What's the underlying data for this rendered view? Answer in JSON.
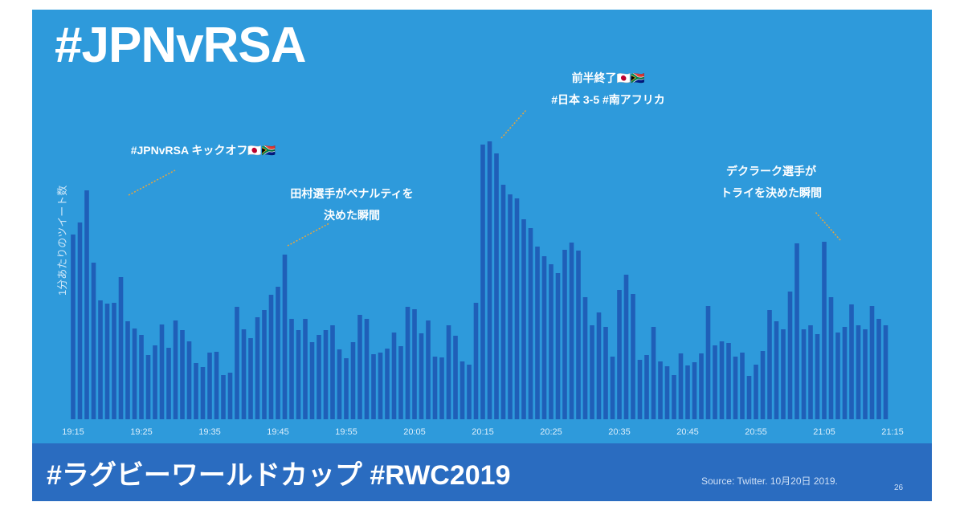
{
  "title": "#JPNvRSA",
  "footer": {
    "hashtags": "#ラグビーワールドカップ #RWC2019",
    "source": "Source: Twitter. 10月20日 2019.",
    "page_number": "26"
  },
  "colors": {
    "background": "#2e9adb",
    "bar": "#1f5fb8",
    "footer": "#2a6cc0",
    "leader_line": "#e8a53c",
    "text": "#ffffff"
  },
  "chart_data": {
    "type": "bar",
    "ylabel": "1分あたりのツイート数",
    "xlabel": "",
    "x_tick_labels": [
      "19:15",
      "19:25",
      "19:35",
      "19:45",
      "19:55",
      "20:05",
      "20:15",
      "20:25",
      "20:35",
      "20:45",
      "20:55",
      "21:05",
      "21:15"
    ],
    "x_range_minutes": [
      "19:15",
      "21:15"
    ],
    "y_axis_shown": false,
    "grid": false,
    "legend": "none",
    "values": [
      230,
      245,
      285,
      195,
      148,
      144,
      145,
      177,
      122,
      113,
      105,
      80,
      92,
      118,
      89,
      123,
      111,
      97,
      70,
      65,
      83,
      84,
      55,
      58,
      140,
      112,
      101,
      127,
      136,
      155,
      165,
      205,
      125,
      111,
      125,
      96,
      105,
      111,
      117,
      87,
      76,
      96,
      130,
      125,
      81,
      83,
      88,
      108,
      91,
      140,
      137,
      107,
      123,
      78,
      77,
      117,
      104,
      72,
      68,
      145,
      342,
      346,
      331,
      292,
      280,
      275,
      249,
      238,
      215,
      203,
      193,
      182,
      211,
      220,
      210,
      152,
      117,
      133,
      115,
      78,
      161,
      180,
      156,
      74,
      80,
      115,
      72,
      66,
      55,
      82,
      67,
      71,
      82,
      141,
      92,
      97,
      95,
      78,
      83,
      54,
      68,
      85,
      136,
      122,
      112,
      159,
      219,
      112,
      117,
      106,
      221,
      152,
      108,
      115,
      143,
      117,
      112,
      141,
      125,
      117
    ],
    "annotations": [
      {
        "text": [
          "#JPNvRSA キックオフ🇯🇵🇿🇦"
        ],
        "x": "19:17"
      },
      {
        "text": [
          "田村選手がペナルティを",
          "決めた瞬間"
        ],
        "x": "19:46"
      },
      {
        "text": [
          "前半終了🇯🇵🇿🇦",
          "#日本 3-5 #南アフリカ"
        ],
        "x": "20:16"
      },
      {
        "text": [
          "デクラーク選手が",
          "トライを決めた瞬間"
        ],
        "x": "21:04"
      }
    ]
  }
}
